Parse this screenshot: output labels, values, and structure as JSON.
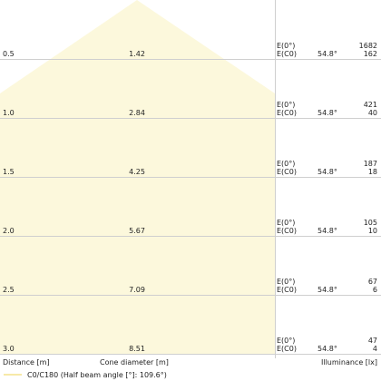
{
  "chart_data": {
    "type": "table",
    "title": "",
    "distance_label": "Distance [m]",
    "cone_label": "Cone diameter [m]",
    "illuminance_label": "Illuminance [lx]",
    "legend": "C0/C180 (Half beam angle [°]: 109.6°)",
    "half_beam_angle_deg": 109.6,
    "beam_color": "#fcf8dc",
    "legend_color": "#f7e9a8",
    "row_label_e0": "E(0°)",
    "row_label_ec0": "E(C0)",
    "rows": [
      {
        "distance": "0.5",
        "cone_diameter": "1.42",
        "angle": "54.8°",
        "e0": "1682",
        "ec0": "162"
      },
      {
        "distance": "1.0",
        "cone_diameter": "2.84",
        "angle": "54.8°",
        "e0": "421",
        "ec0": "40"
      },
      {
        "distance": "1.5",
        "cone_diameter": "4.25",
        "angle": "54.8°",
        "e0": "187",
        "ec0": "18"
      },
      {
        "distance": "2.0",
        "cone_diameter": "5.67",
        "angle": "54.8°",
        "e0": "105",
        "ec0": "10"
      },
      {
        "distance": "2.5",
        "cone_diameter": "7.09",
        "angle": "54.8°",
        "e0": "67",
        "ec0": "6"
      },
      {
        "distance": "3.0",
        "cone_diameter": "8.51",
        "angle": "54.8°",
        "e0": "47",
        "ec0": "4"
      }
    ]
  }
}
